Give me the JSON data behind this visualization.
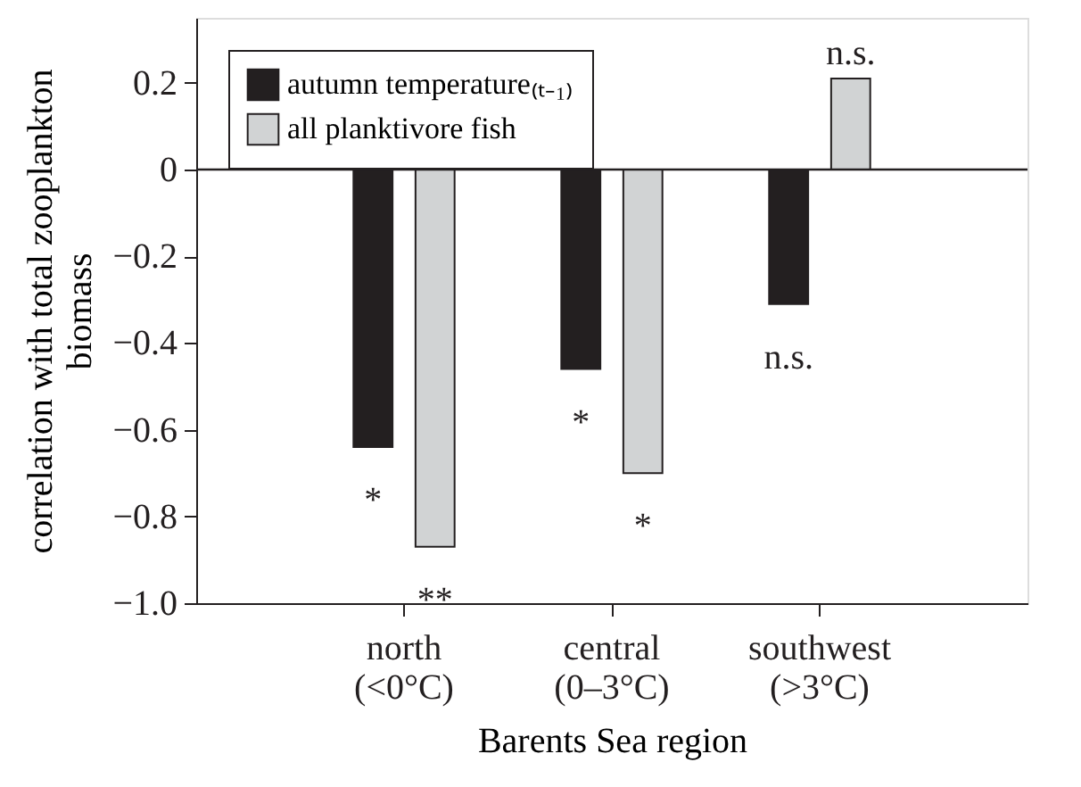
{
  "chart_data": {
    "type": "bar",
    "xlabel": "Barents Sea region",
    "ylabel": "correlation with total zooplankton\nbiomass",
    "categories": [
      "north\n(<0°C)",
      "central\n(0–3°C)",
      "southwest\n(>3°C)"
    ],
    "series": [
      {
        "name": "autumn temperature₍ₜ₋₁₎",
        "color": "#231f20",
        "values": [
          -0.64,
          -0.46,
          -0.31
        ],
        "value_labels": [
          "*",
          "*",
          "n.s."
        ]
      },
      {
        "name": "all planktivore fish",
        "color": "#d1d3d4",
        "values": [
          -0.87,
          -0.7,
          0.21
        ],
        "value_labels": [
          "**",
          "*",
          "n.s."
        ]
      }
    ],
    "ylim": [
      -1.0,
      0.35
    ],
    "yticks": [
      {
        "value": -1.0,
        "label": "−1.0"
      },
      -0.8,
      -0.6,
      -0.4,
      -0.2,
      0,
      0.2
    ],
    "ref_lines": [
      {
        "axis": "y",
        "value": 0
      }
    ],
    "grid": false,
    "legend": "top left"
  }
}
